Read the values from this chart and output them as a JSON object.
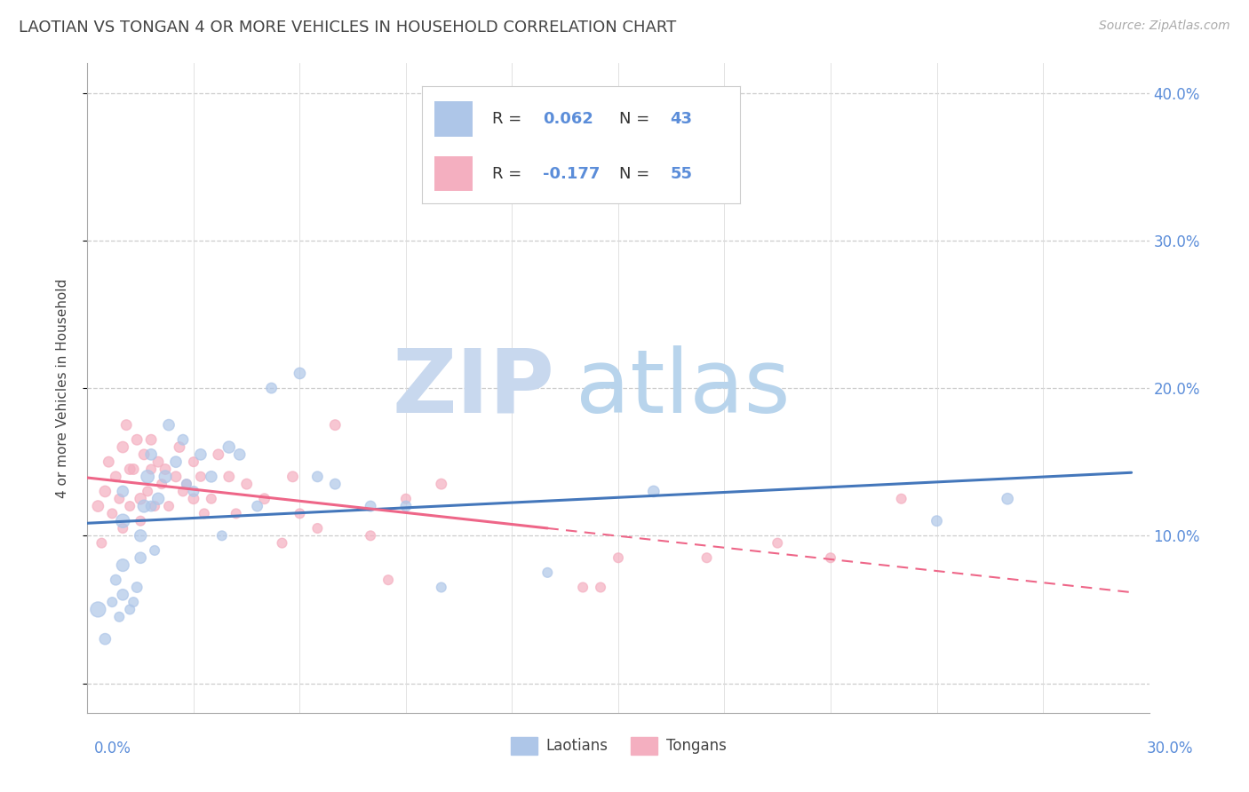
{
  "title": "LAOTIAN VS TONGAN 4 OR MORE VEHICLES IN HOUSEHOLD CORRELATION CHART",
  "source": "Source: ZipAtlas.com",
  "ylabel": "4 or more Vehicles in Household",
  "xlim": [
    0.0,
    0.3
  ],
  "ylim": [
    -0.02,
    0.42
  ],
  "ytick_values": [
    0.0,
    0.1,
    0.2,
    0.3,
    0.4
  ],
  "ytick_labels": [
    "",
    "10.0%",
    "20.0%",
    "30.0%",
    "40.0%"
  ],
  "laotian_color": "#aec6e8",
  "tongan_color": "#f4afc0",
  "laotian_line_color": "#4477bb",
  "tongan_line_color": "#ee6688",
  "laotian_x": [
    0.003,
    0.005,
    0.007,
    0.008,
    0.009,
    0.01,
    0.01,
    0.01,
    0.01,
    0.012,
    0.013,
    0.014,
    0.015,
    0.015,
    0.016,
    0.017,
    0.018,
    0.018,
    0.019,
    0.02,
    0.022,
    0.023,
    0.025,
    0.027,
    0.028,
    0.03,
    0.032,
    0.035,
    0.038,
    0.04,
    0.043,
    0.048,
    0.052,
    0.06,
    0.065,
    0.07,
    0.08,
    0.09,
    0.1,
    0.13,
    0.16,
    0.24,
    0.26
  ],
  "laotian_y": [
    0.05,
    0.03,
    0.055,
    0.07,
    0.045,
    0.06,
    0.08,
    0.11,
    0.13,
    0.05,
    0.055,
    0.065,
    0.085,
    0.1,
    0.12,
    0.14,
    0.155,
    0.12,
    0.09,
    0.125,
    0.14,
    0.175,
    0.15,
    0.165,
    0.135,
    0.13,
    0.155,
    0.14,
    0.1,
    0.16,
    0.155,
    0.12,
    0.2,
    0.21,
    0.14,
    0.135,
    0.12,
    0.12,
    0.065,
    0.075,
    0.13,
    0.11,
    0.125
  ],
  "laotian_size": [
    150,
    80,
    60,
    70,
    60,
    80,
    100,
    120,
    80,
    60,
    60,
    70,
    80,
    90,
    100,
    110,
    80,
    70,
    60,
    90,
    100,
    80,
    80,
    70,
    60,
    70,
    80,
    80,
    60,
    90,
    80,
    70,
    70,
    80,
    70,
    70,
    70,
    70,
    60,
    60,
    80,
    70,
    80
  ],
  "tongan_x": [
    0.003,
    0.004,
    0.005,
    0.006,
    0.007,
    0.008,
    0.009,
    0.01,
    0.01,
    0.011,
    0.012,
    0.012,
    0.013,
    0.014,
    0.015,
    0.015,
    0.016,
    0.017,
    0.018,
    0.018,
    0.019,
    0.02,
    0.021,
    0.022,
    0.023,
    0.025,
    0.026,
    0.027,
    0.028,
    0.03,
    0.03,
    0.032,
    0.033,
    0.035,
    0.037,
    0.04,
    0.042,
    0.045,
    0.05,
    0.055,
    0.058,
    0.06,
    0.065,
    0.07,
    0.08,
    0.085,
    0.09,
    0.1,
    0.14,
    0.145,
    0.15,
    0.175,
    0.195,
    0.21,
    0.23
  ],
  "tongan_y": [
    0.12,
    0.095,
    0.13,
    0.15,
    0.115,
    0.14,
    0.125,
    0.16,
    0.105,
    0.175,
    0.145,
    0.12,
    0.145,
    0.165,
    0.125,
    0.11,
    0.155,
    0.13,
    0.165,
    0.145,
    0.12,
    0.15,
    0.135,
    0.145,
    0.12,
    0.14,
    0.16,
    0.13,
    0.135,
    0.125,
    0.15,
    0.14,
    0.115,
    0.125,
    0.155,
    0.14,
    0.115,
    0.135,
    0.125,
    0.095,
    0.14,
    0.115,
    0.105,
    0.175,
    0.1,
    0.07,
    0.125,
    0.135,
    0.065,
    0.065,
    0.085,
    0.085,
    0.095,
    0.085,
    0.125
  ],
  "tongan_size": [
    80,
    60,
    80,
    70,
    60,
    70,
    60,
    80,
    60,
    70,
    70,
    60,
    70,
    70,
    80,
    60,
    70,
    60,
    70,
    60,
    60,
    70,
    60,
    70,
    60,
    70,
    70,
    60,
    60,
    70,
    60,
    60,
    60,
    60,
    70,
    70,
    60,
    70,
    70,
    60,
    70,
    60,
    60,
    70,
    60,
    60,
    60,
    70,
    60,
    60,
    60,
    60,
    60,
    60,
    60
  ]
}
